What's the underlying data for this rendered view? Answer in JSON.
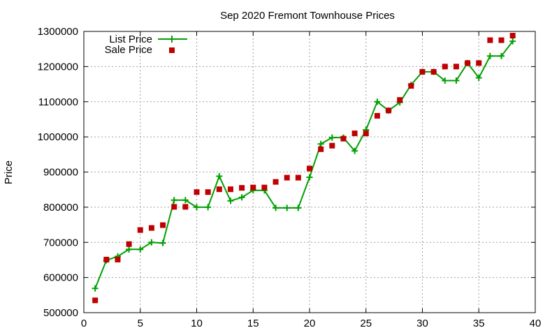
{
  "chart_data": {
    "type": "line",
    "title": "Sep 2020 Fremont Townhouse Prices",
    "xlabel": "",
    "ylabel": "Price",
    "xlim": [
      0,
      40
    ],
    "ylim": [
      500000,
      1300000
    ],
    "xticks": [
      0,
      5,
      10,
      15,
      20,
      25,
      30,
      35,
      40
    ],
    "yticks": [
      500000,
      600000,
      700000,
      800000,
      900000,
      1000000,
      1100000,
      1200000,
      1300000
    ],
    "grid": true,
    "legend_position": "top-left",
    "series": [
      {
        "name": "List Price",
        "style": "line-plus",
        "color": "#00a000",
        "x": [
          1,
          2,
          3,
          4,
          5,
          6,
          7,
          8,
          9,
          10,
          11,
          12,
          13,
          14,
          15,
          16,
          17,
          18,
          19,
          20,
          21,
          22,
          23,
          24,
          25,
          26,
          27,
          28,
          29,
          30,
          31,
          32,
          33,
          34,
          35,
          36,
          37,
          38
        ],
        "values": [
          569000,
          649000,
          660000,
          680000,
          680000,
          700000,
          698000,
          820000,
          820000,
          800000,
          800000,
          888000,
          818000,
          828000,
          848000,
          848000,
          798000,
          798000,
          798000,
          885000,
          980000,
          998000,
          998000,
          960000,
          1020000,
          1100000,
          1075000,
          1098000,
          1148000,
          1185000,
          1185000,
          1160000,
          1160000,
          1210000,
          1168000,
          1230000,
          1230000,
          1272000
        ]
      },
      {
        "name": "Sale Price",
        "style": "square-markers",
        "color": "#c00000",
        "x": [
          1,
          2,
          3,
          4,
          5,
          6,
          7,
          8,
          9,
          10,
          11,
          12,
          13,
          14,
          15,
          16,
          17,
          18,
          19,
          20,
          21,
          22,
          23,
          24,
          25,
          26,
          27,
          28,
          29,
          30,
          31,
          32,
          33,
          34,
          35,
          36,
          37,
          38
        ],
        "values": [
          535000,
          651000,
          651000,
          695000,
          735000,
          741000,
          749000,
          801000,
          801000,
          843000,
          843000,
          851000,
          851000,
          855000,
          856000,
          856000,
          872000,
          884000,
          884000,
          910000,
          965000,
          975000,
          995000,
          1010000,
          1010000,
          1060000,
          1075000,
          1105000,
          1145000,
          1185000,
          1185000,
          1200000,
          1200000,
          1210000,
          1210000,
          1275000,
          1275000,
          1288000
        ]
      }
    ]
  }
}
